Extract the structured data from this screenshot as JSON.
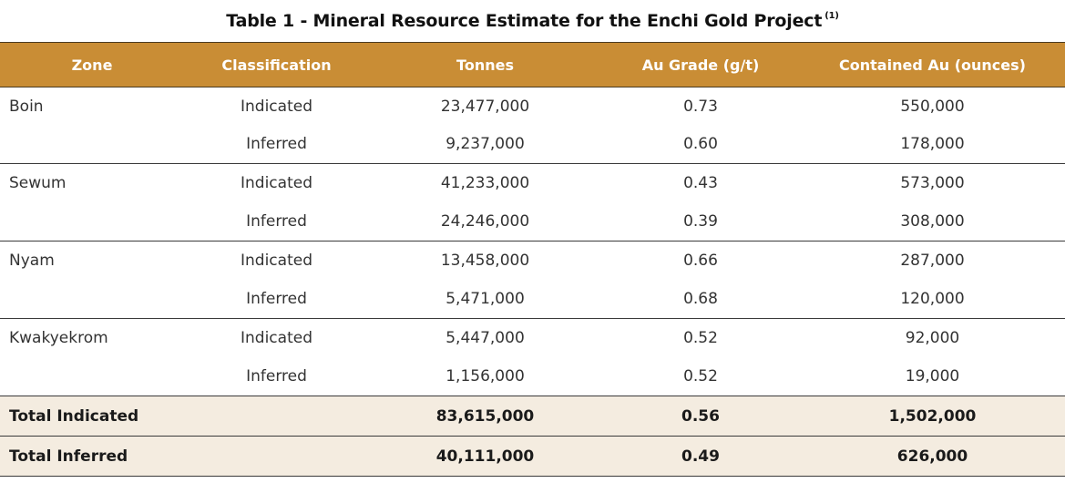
{
  "title": {
    "text": "Table 1 - Mineral Resource Estimate for the Enchi Gold Project",
    "footnote": "(1)"
  },
  "headers": {
    "zone": "Zone",
    "classification": "Classification",
    "tonnes": "Tonnes",
    "grade": "Au Grade (g/t)",
    "contained": "Contained Au (ounces)"
  },
  "rows": [
    {
      "zone": "Boin",
      "classification": "Indicated",
      "tonnes": "23,477,000",
      "grade": "0.73",
      "contained": "550,000"
    },
    {
      "zone": "",
      "classification": "Inferred",
      "tonnes": "9,237,000",
      "grade": "0.60",
      "contained": "178,000"
    },
    {
      "zone": "Sewum",
      "classification": "Indicated",
      "tonnes": "41,233,000",
      "grade": "0.43",
      "contained": "573,000"
    },
    {
      "zone": "",
      "classification": "Inferred",
      "tonnes": "24,246,000",
      "grade": "0.39",
      "contained": "308,000"
    },
    {
      "zone": "Nyam",
      "classification": "Indicated",
      "tonnes": "13,458,000",
      "grade": "0.66",
      "contained": "287,000"
    },
    {
      "zone": "",
      "classification": "Inferred",
      "tonnes": "5,471,000",
      "grade": "0.68",
      "contained": "120,000"
    },
    {
      "zone": "Kwakyekrom",
      "classification": "Indicated",
      "tonnes": "5,447,000",
      "grade": "0.52",
      "contained": "92,000"
    },
    {
      "zone": "",
      "classification": "Inferred",
      "tonnes": "1,156,000",
      "grade": "0.52",
      "contained": "19,000"
    }
  ],
  "totals": [
    {
      "label": "Total Indicated",
      "tonnes": "83,615,000",
      "grade": "0.56",
      "contained": "1,502,000"
    },
    {
      "label": "Total Inferred",
      "tonnes": "40,111,000",
      "grade": "0.49",
      "contained": "626,000"
    }
  ],
  "colors": {
    "header_bg": "#c98d35",
    "total_bg": "#f4ece0"
  }
}
